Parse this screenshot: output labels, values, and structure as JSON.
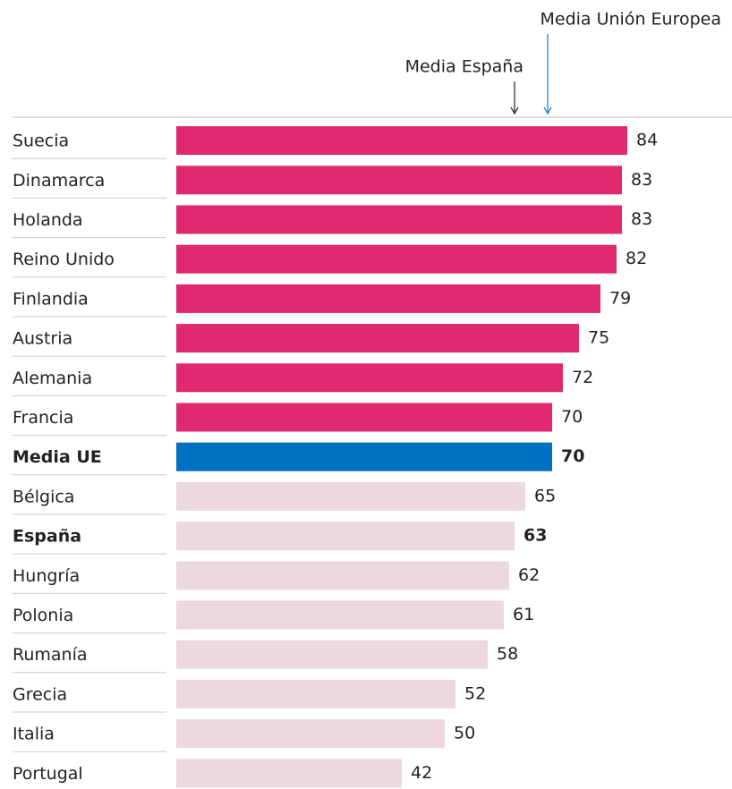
{
  "chart_data": {
    "type": "hbar",
    "categories": [
      "Suecia",
      "Dinamarca",
      "Holanda",
      "Reino Unido",
      "Finlandia",
      "Austria",
      "Alemania",
      "Francia",
      "Media UE",
      "Bélgica",
      "España",
      "Hungría",
      "Polonia",
      "Rumanía",
      "Grecia",
      "Italia",
      "Portugal"
    ],
    "values": [
      84,
      83,
      83,
      82,
      79,
      75,
      72,
      70,
      70,
      65,
      63,
      62,
      61,
      58,
      52,
      50,
      42
    ],
    "colors": [
      "#e0296e",
      "#e0296e",
      "#e0296e",
      "#e0296e",
      "#e0296e",
      "#e0296e",
      "#e0296e",
      "#e0296e",
      "#0070c0",
      "#ecd8de",
      "#ecd8de",
      "#ecd8de",
      "#ecd8de",
      "#ecd8de",
      "#ecd8de",
      "#ecd8de",
      "#ecd8de"
    ],
    "bold": [
      false,
      false,
      false,
      false,
      false,
      false,
      false,
      false,
      true,
      false,
      true,
      false,
      false,
      false,
      false,
      false,
      false
    ],
    "xlim": [
      0,
      100
    ],
    "annotations": [
      {
        "text": "Media España",
        "x": 63,
        "color": "#333333"
      },
      {
        "text": "Media Unión Europea",
        "x": 70,
        "color": "#2a7fd0"
      }
    ]
  }
}
